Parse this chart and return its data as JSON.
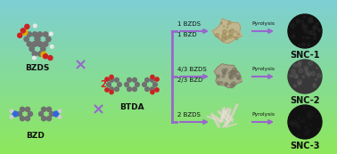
{
  "bg_top_color": "#7ecfd4",
  "bg_bottom_color": "#8ee85a",
  "arrow_color": "#9966cc",
  "labels": {
    "BZDS": "BZDS",
    "BZD": "BZD",
    "BTDA": "BTDA",
    "two": "2",
    "row1_top": "1 BZDS",
    "row1_bot": "1 BZD",
    "row2_top": "4/3 BZDS",
    "row2_bot": "2/3 BZD",
    "row3": "2 BZDS",
    "pyrolysis": "Pyrolysis",
    "snc1": "SNC-1",
    "snc2": "SNC-2",
    "snc3": "SNC-3"
  },
  "label_fontsize": 6.5,
  "small_fontsize": 5.0,
  "snc_fontsize": 7.0,
  "arrow_lw": 1.5
}
